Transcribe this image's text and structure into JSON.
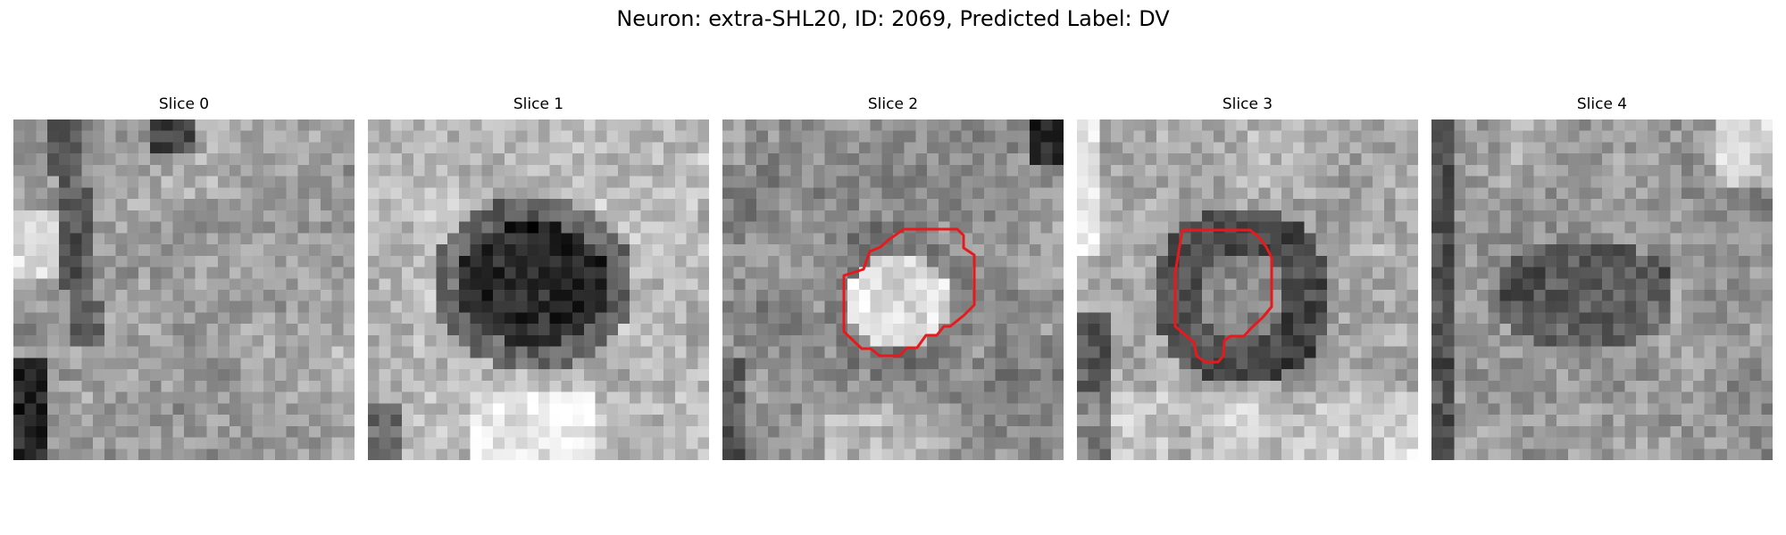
{
  "figure": {
    "title": "Neuron: extra-SHL20, ID: 2069, Predicted Label: DV"
  },
  "contour_color": "#e8191c",
  "panels": [
    {
      "title": "Slice 0",
      "pattern": "mixed-left-dark",
      "contour": false
    },
    {
      "title": "Slice 1",
      "pattern": "dark-blob-center",
      "contour": false
    },
    {
      "title": "Slice 2",
      "pattern": "bright-blob-center",
      "contour": true
    },
    {
      "title": "Slice 3",
      "pattern": "dark-ring-center",
      "contour": true
    },
    {
      "title": "Slice 4",
      "pattern": "noisy-mid-dark",
      "contour": false
    }
  ]
}
